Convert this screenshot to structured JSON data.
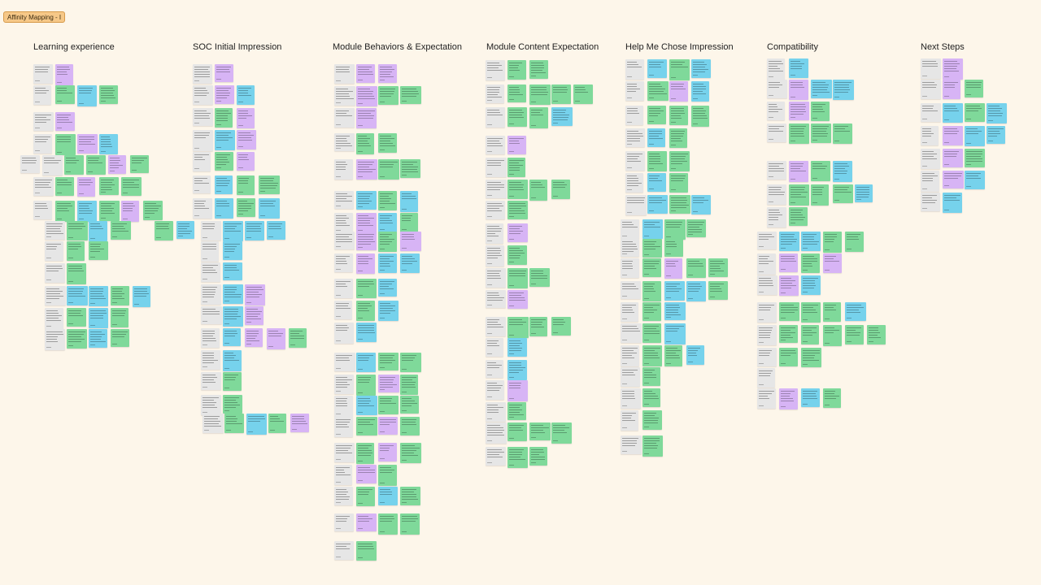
{
  "frame": {
    "label": "Affinity Mapping - I"
  },
  "columns": [
    {
      "title": "Learning experience"
    },
    {
      "title": "SOC Initial Impression"
    },
    {
      "title": "Module Behaviors & Expectation"
    },
    {
      "title": "Module Content Expectation"
    },
    {
      "title": "Help Me Chose Impression"
    },
    {
      "title": "Compatibility"
    },
    {
      "title": "Next Steps"
    }
  ],
  "colors": {
    "background": "#fdf6ea",
    "tag_fill": "#f6c888",
    "note_gray": "#e6e6e6",
    "note_green": "#7fd99a",
    "note_purple": "#d7b4f5",
    "note_blue": "#76d2ec"
  }
}
